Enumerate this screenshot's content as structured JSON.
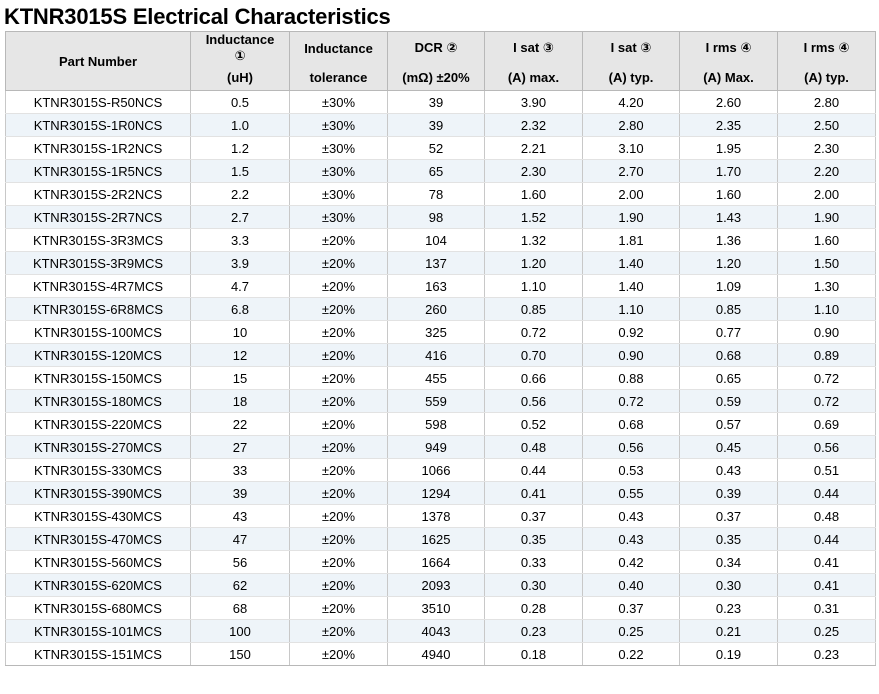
{
  "title": "KTNR3015S Electrical Characteristics",
  "header": {
    "part_number": "Part Number",
    "inductance_l1": "Inductance",
    "inductance_l2": "①",
    "inductance_unit": "(uH)",
    "tolerance_top": "Inductance",
    "tolerance_bottom": "tolerance",
    "dcr_top": "DCR ②",
    "dcr_bottom": "(mΩ) ±20%",
    "isat_max_top": "I sat ③",
    "isat_max_bottom": "(A) max.",
    "isat_typ_top": "I sat ③",
    "isat_typ_bottom": "(A) typ.",
    "irms_max_top": "I rms ④",
    "irms_max_bottom": "(A) Max.",
    "irms_typ_top": "I rms ④",
    "irms_typ_bottom": "(A) typ."
  },
  "rows": [
    {
      "part": "KTNR3015S-R50NCS",
      "inductance": "0.5",
      "tolerance": "±30%",
      "dcr": "39",
      "isat_max": "3.90",
      "isat_typ": "4.20",
      "irms_max": "2.60",
      "irms_typ": "2.80"
    },
    {
      "part": "KTNR3015S-1R0NCS",
      "inductance": "1.0",
      "tolerance": "±30%",
      "dcr": "39",
      "isat_max": "2.32",
      "isat_typ": "2.80",
      "irms_max": "2.35",
      "irms_typ": "2.50"
    },
    {
      "part": "KTNR3015S-1R2NCS",
      "inductance": "1.2",
      "tolerance": "±30%",
      "dcr": "52",
      "isat_max": "2.21",
      "isat_typ": "3.10",
      "irms_max": "1.95",
      "irms_typ": "2.30"
    },
    {
      "part": "KTNR3015S-1R5NCS",
      "inductance": "1.5",
      "tolerance": "±30%",
      "dcr": "65",
      "isat_max": "2.30",
      "isat_typ": "2.70",
      "irms_max": "1.70",
      "irms_typ": "2.20"
    },
    {
      "part": "KTNR3015S-2R2NCS",
      "inductance": "2.2",
      "tolerance": "±30%",
      "dcr": "78",
      "isat_max": "1.60",
      "isat_typ": "2.00",
      "irms_max": "1.60",
      "irms_typ": "2.00"
    },
    {
      "part": "KTNR3015S-2R7NCS",
      "inductance": "2.7",
      "tolerance": "±30%",
      "dcr": "98",
      "isat_max": "1.52",
      "isat_typ": "1.90",
      "irms_max": "1.43",
      "irms_typ": "1.90"
    },
    {
      "part": "KTNR3015S-3R3MCS",
      "inductance": "3.3",
      "tolerance": "±20%",
      "dcr": "104",
      "isat_max": "1.32",
      "isat_typ": "1.81",
      "irms_max": "1.36",
      "irms_typ": "1.60"
    },
    {
      "part": "KTNR3015S-3R9MCS",
      "inductance": "3.9",
      "tolerance": "±20%",
      "dcr": "137",
      "isat_max": "1.20",
      "isat_typ": "1.40",
      "irms_max": "1.20",
      "irms_typ": "1.50"
    },
    {
      "part": "KTNR3015S-4R7MCS",
      "inductance": "4.7",
      "tolerance": "±20%",
      "dcr": "163",
      "isat_max": "1.10",
      "isat_typ": "1.40",
      "irms_max": "1.09",
      "irms_typ": "1.30"
    },
    {
      "part": "KTNR3015S-6R8MCS",
      "inductance": "6.8",
      "tolerance": "±20%",
      "dcr": "260",
      "isat_max": "0.85",
      "isat_typ": "1.10",
      "irms_max": "0.85",
      "irms_typ": "1.10"
    },
    {
      "part": "KTNR3015S-100MCS",
      "inductance": "10",
      "tolerance": "±20%",
      "dcr": "325",
      "isat_max": "0.72",
      "isat_typ": "0.92",
      "irms_max": "0.77",
      "irms_typ": "0.90"
    },
    {
      "part": "KTNR3015S-120MCS",
      "inductance": "12",
      "tolerance": "±20%",
      "dcr": "416",
      "isat_max": "0.70",
      "isat_typ": "0.90",
      "irms_max": "0.68",
      "irms_typ": "0.89"
    },
    {
      "part": "KTNR3015S-150MCS",
      "inductance": "15",
      "tolerance": "±20%",
      "dcr": "455",
      "isat_max": "0.66",
      "isat_typ": "0.88",
      "irms_max": "0.65",
      "irms_typ": "0.72"
    },
    {
      "part": "KTNR3015S-180MCS",
      "inductance": "18",
      "tolerance": "±20%",
      "dcr": "559",
      "isat_max": "0.56",
      "isat_typ": "0.72",
      "irms_max": "0.59",
      "irms_typ": "0.72"
    },
    {
      "part": "KTNR3015S-220MCS",
      "inductance": "22",
      "tolerance": "±20%",
      "dcr": "598",
      "isat_max": "0.52",
      "isat_typ": "0.68",
      "irms_max": "0.57",
      "irms_typ": "0.69"
    },
    {
      "part": "KTNR3015S-270MCS",
      "inductance": "27",
      "tolerance": "±20%",
      "dcr": "949",
      "isat_max": "0.48",
      "isat_typ": "0.56",
      "irms_max": "0.45",
      "irms_typ": "0.56"
    },
    {
      "part": "KTNR3015S-330MCS",
      "inductance": "33",
      "tolerance": "±20%",
      "dcr": "1066",
      "isat_max": "0.44",
      "isat_typ": "0.53",
      "irms_max": "0.43",
      "irms_typ": "0.51"
    },
    {
      "part": "KTNR3015S-390MCS",
      "inductance": "39",
      "tolerance": "±20%",
      "dcr": "1294",
      "isat_max": "0.41",
      "isat_typ": "0.55",
      "irms_max": "0.39",
      "irms_typ": "0.44"
    },
    {
      "part": "KTNR3015S-430MCS",
      "inductance": "43",
      "tolerance": "±20%",
      "dcr": "1378",
      "isat_max": "0.37",
      "isat_typ": "0.43",
      "irms_max": "0.37",
      "irms_typ": "0.48"
    },
    {
      "part": "KTNR3015S-470MCS",
      "inductance": "47",
      "tolerance": "±20%",
      "dcr": "1625",
      "isat_max": "0.35",
      "isat_typ": "0.43",
      "irms_max": "0.35",
      "irms_typ": "0.44"
    },
    {
      "part": "KTNR3015S-560MCS",
      "inductance": "56",
      "tolerance": "±20%",
      "dcr": "1664",
      "isat_max": "0.33",
      "isat_typ": "0.42",
      "irms_max": "0.34",
      "irms_typ": "0.41"
    },
    {
      "part": "KTNR3015S-620MCS",
      "inductance": "62",
      "tolerance": "±20%",
      "dcr": "2093",
      "isat_max": "0.30",
      "isat_typ": "0.40",
      "irms_max": "0.30",
      "irms_typ": "0.41"
    },
    {
      "part": "KTNR3015S-680MCS",
      "inductance": "68",
      "tolerance": "±20%",
      "dcr": "3510",
      "isat_max": "0.28",
      "isat_typ": "0.37",
      "irms_max": "0.23",
      "irms_typ": "0.31"
    },
    {
      "part": "KTNR3015S-101MCS",
      "inductance": "100",
      "tolerance": "±20%",
      "dcr": "4043",
      "isat_max": "0.23",
      "isat_typ": "0.25",
      "irms_max": "0.21",
      "irms_typ": "0.25"
    },
    {
      "part": "KTNR3015S-151MCS",
      "inductance": "150",
      "tolerance": "±20%",
      "dcr": "4940",
      "isat_max": "0.18",
      "isat_typ": "0.22",
      "irms_max": "0.19",
      "irms_typ": "0.23"
    }
  ]
}
